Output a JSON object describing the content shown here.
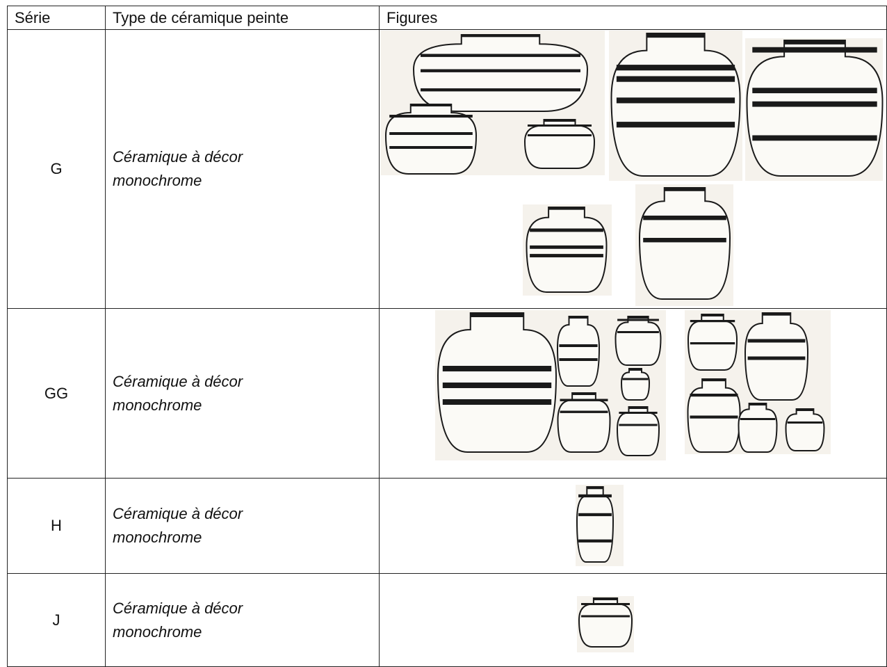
{
  "table": {
    "header": [
      "Série",
      "Type de céramique peinte",
      "Figures"
    ],
    "rows": [
      [
        "G",
        "Céramique à décor monochrome"
      ],
      [
        "GG",
        "Céramique à décor monochrome"
      ],
      [
        "H",
        "Céramique à décor monochrome"
      ],
      [
        "J",
        "Céramique à décor monochrome"
      ]
    ]
  }
}
